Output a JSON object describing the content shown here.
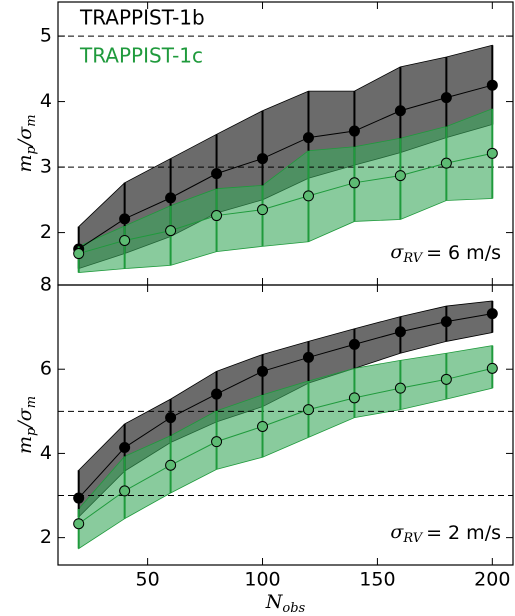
{
  "chart_data": [
    {
      "type": "errorband",
      "x": [
        20,
        40,
        60,
        80,
        100,
        120,
        140,
        160,
        180,
        200
      ],
      "xlim": [
        11,
        209
      ],
      "xticks": [
        50,
        100,
        150,
        200
      ],
      "ylim": [
        1.2,
        5.52
      ],
      "yticks": [
        2,
        3,
        4,
        5
      ],
      "ylabel": {
        "main1": "m",
        "sub1": "p",
        "main2": "/σ",
        "sub2": "m"
      },
      "hlines": [
        3,
        5
      ],
      "legend": "upper left",
      "annotation": {
        "symbol": "σ",
        "sub": "RV",
        "text": "= 6 m/s"
      },
      "series": [
        {
          "name": "TRAPPIST-1b",
          "color": "#000000",
          "fill": "#3a3a3a",
          "values": [
            1.75,
            2.21,
            2.53,
            2.9,
            3.13,
            3.45,
            3.55,
            3.86,
            4.06,
            4.25
          ],
          "lower": [
            1.45,
            1.68,
            1.94,
            2.3,
            2.5,
            2.83,
            3.03,
            3.22,
            3.45,
            3.65
          ],
          "upper": [
            2.09,
            2.76,
            3.13,
            3.5,
            3.86,
            4.16,
            4.16,
            4.53,
            4.68,
            4.86
          ]
        },
        {
          "name": "TRAPPIST-1c",
          "color": "#1f9a3c",
          "fill": "#3aa85c",
          "values": [
            1.68,
            1.88,
            2.03,
            2.26,
            2.35,
            2.56,
            2.76,
            2.87,
            3.06,
            3.21
          ],
          "lower": [
            1.39,
            1.45,
            1.5,
            1.71,
            1.79,
            1.86,
            2.17,
            2.2,
            2.49,
            2.52
          ],
          "upper": [
            1.79,
            2.1,
            2.41,
            2.67,
            2.72,
            3.25,
            3.31,
            3.44,
            3.62,
            3.89
          ]
        }
      ]
    },
    {
      "type": "errorband",
      "x": [
        20,
        40,
        60,
        80,
        100,
        120,
        140,
        160,
        180,
        200
      ],
      "xlim": [
        11,
        209
      ],
      "xticks": [
        50,
        100,
        150,
        200
      ],
      "ylim": [
        1.35,
        8
      ],
      "yticks": [
        2,
        4,
        6,
        8
      ],
      "xlabel": {
        "main": "N",
        "sub": "obs"
      },
      "ylabel": {
        "main1": "m",
        "sub1": "p",
        "main2": "/σ",
        "sub2": "m"
      },
      "hlines": [
        3,
        5
      ],
      "annotation": {
        "symbol": "σ",
        "sub": "RV",
        "text": "= 2 m/s"
      },
      "series": [
        {
          "color": "#000000",
          "fill": "#3a3a3a",
          "values": [
            2.94,
            4.14,
            4.85,
            5.41,
            5.95,
            6.28,
            6.59,
            6.89,
            7.13,
            7.32
          ],
          "lower": [
            2.49,
            3.58,
            4.26,
            4.75,
            5.11,
            5.67,
            6.02,
            6.38,
            6.66,
            6.87
          ],
          "upper": [
            3.6,
            4.7,
            5.29,
            5.95,
            6.35,
            6.66,
            6.96,
            7.25,
            7.5,
            7.62
          ]
        },
        {
          "color": "#1f9a3c",
          "fill": "#3aa85c",
          "values": [
            2.33,
            3.11,
            3.72,
            4.28,
            4.64,
            5.04,
            5.32,
            5.55,
            5.76,
            6.02
          ],
          "lower": [
            1.74,
            2.45,
            3.06,
            3.62,
            3.91,
            4.38,
            4.85,
            5.04,
            5.29,
            5.55
          ],
          "upper": [
            2.68,
            3.93,
            4.42,
            5.01,
            5.39,
            5.72,
            6.02,
            6.21,
            6.38,
            6.56
          ]
        }
      ]
    }
  ]
}
